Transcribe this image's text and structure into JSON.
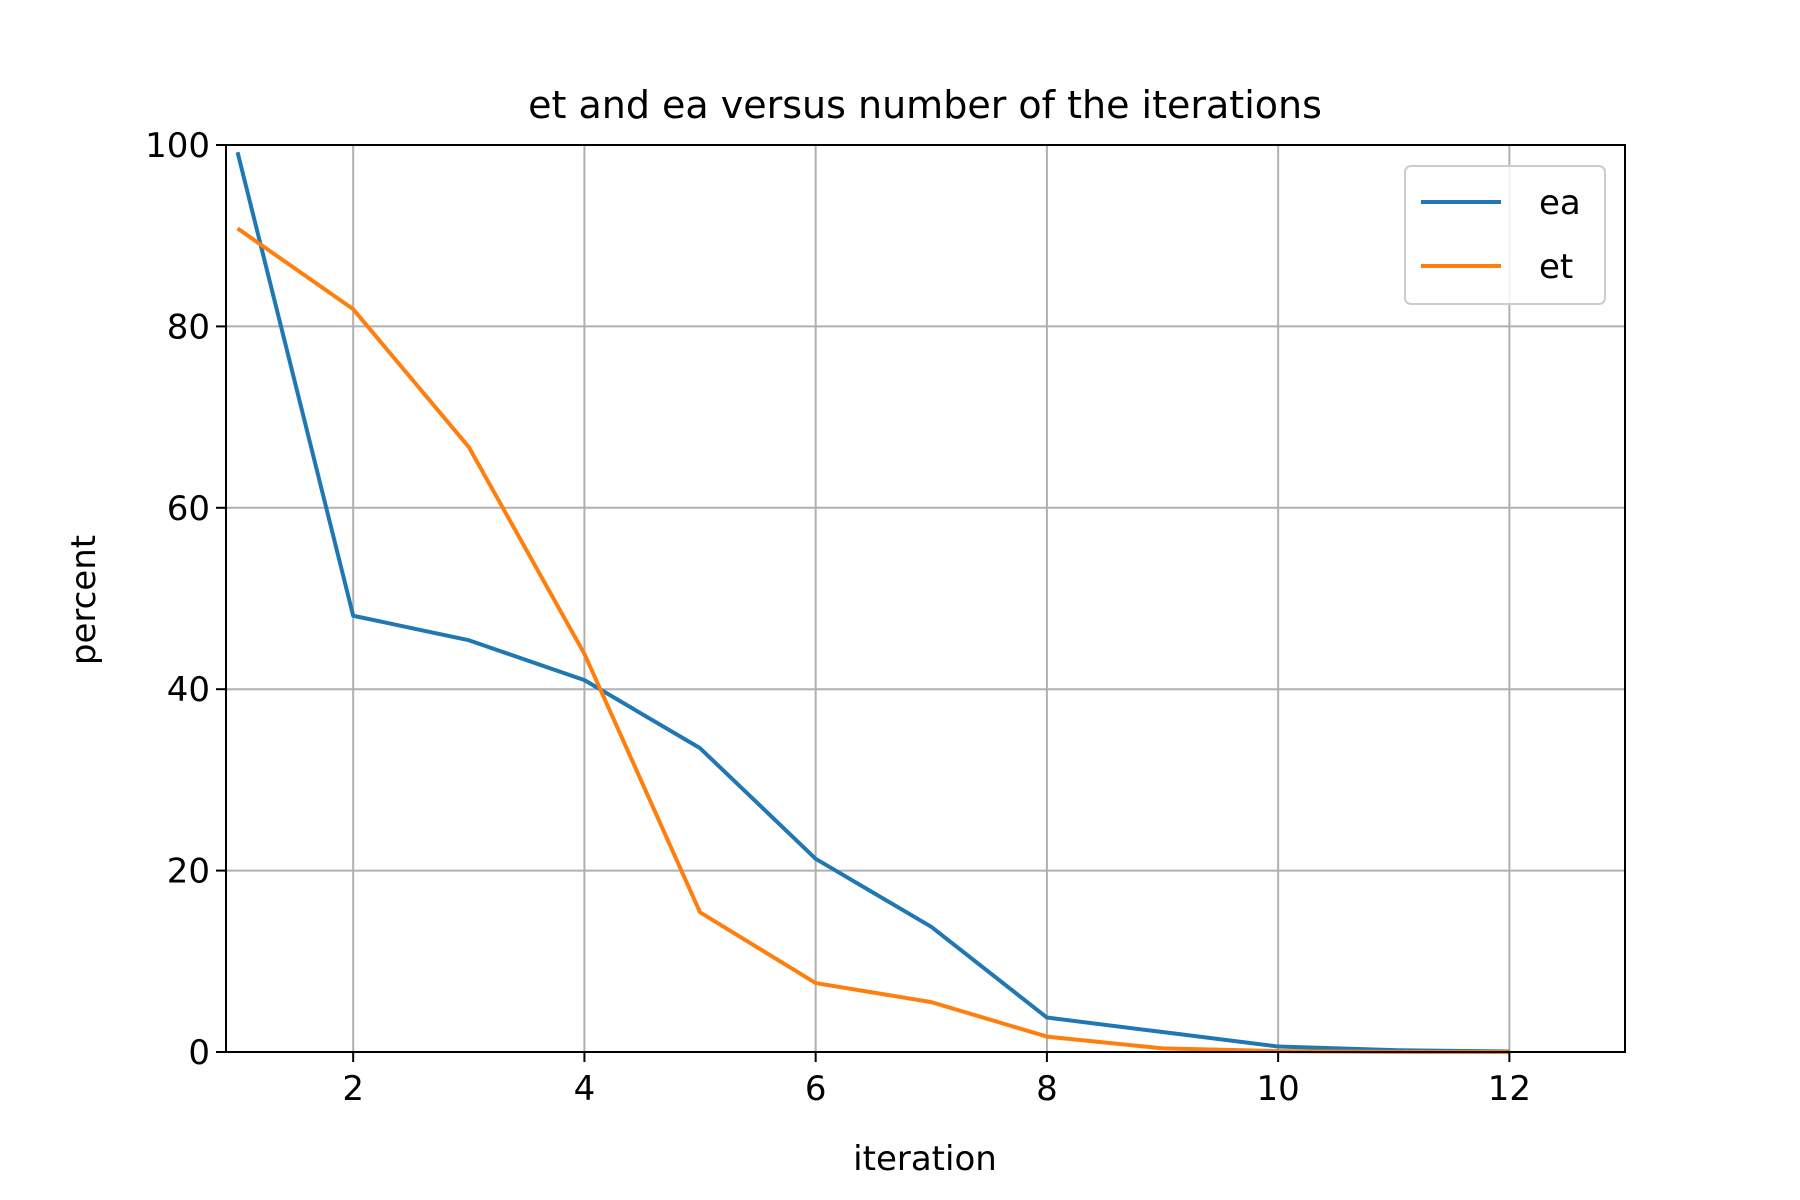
{
  "chart_data": {
    "type": "line",
    "title": "et and ea versus number of the iterations",
    "xlabel": "iteration",
    "ylabel": "percent",
    "xlim": [
      0.9,
      13
    ],
    "ylim": [
      0,
      100
    ],
    "xticks": [
      2,
      4,
      6,
      8,
      10,
      12
    ],
    "yticks": [
      0,
      20,
      40,
      60,
      80,
      100
    ],
    "grid": true,
    "legend_position": "top-right",
    "x": [
      1,
      2,
      3,
      4,
      5,
      6,
      7,
      8,
      9,
      10,
      11,
      12
    ],
    "series": [
      {
        "name": "ea",
        "color": "#1f77b4",
        "values": [
          99.2,
          48.1,
          45.4,
          41.0,
          33.5,
          21.3,
          13.8,
          3.8,
          2.2,
          0.6,
          0.2,
          0.05
        ]
      },
      {
        "name": "et",
        "color": "#ff7f0e",
        "values": [
          90.8,
          81.9,
          66.7,
          43.9,
          15.4,
          7.6,
          5.5,
          1.7,
          0.4,
          0.1,
          0.02,
          0.005
        ]
      }
    ]
  }
}
